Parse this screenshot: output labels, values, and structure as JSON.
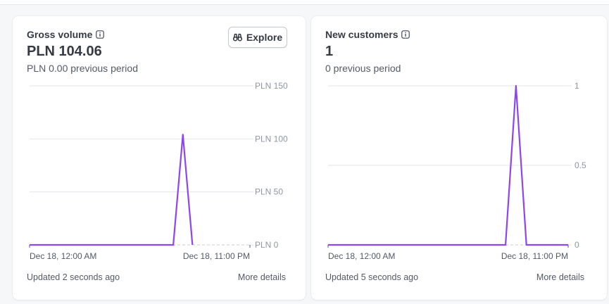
{
  "colors": {
    "line": "#8b46f2",
    "grid": "#e3e6eb",
    "baseline": "#c9ccd4"
  },
  "cards": [
    {
      "title": "Gross volume",
      "value": "PLN 104.06",
      "previous": "PLN 0.00 previous period",
      "explore_label": "Explore",
      "updated": "Updated 2 seconds ago",
      "details": "More details",
      "info_icon": "info-icon",
      "explore_icon": "binoculars-icon"
    },
    {
      "title": "New customers",
      "value": "1",
      "previous": "0 previous period",
      "updated": "Updated 5 seconds ago",
      "details": "More details",
      "info_icon": "info-icon"
    }
  ],
  "chart_data": [
    {
      "type": "line",
      "title": "Gross volume",
      "x_labels": [
        "Dec 18, 12:00 AM",
        "Dec 18, 11:00 PM"
      ],
      "y_ticks": [
        "PLN 0",
        "PLN 50",
        "PLN 100",
        "PLN 150"
      ],
      "y_tick_values": [
        0,
        50,
        100,
        150
      ],
      "ylim": [
        0,
        150
      ],
      "x": [
        0,
        1,
        2,
        3,
        4,
        5,
        6,
        7,
        8,
        9,
        10,
        11,
        12,
        13,
        14,
        15,
        16,
        17,
        18,
        19,
        20,
        21,
        22,
        23
      ],
      "series": [
        {
          "values": [
            0,
            0,
            0,
            0,
            0,
            0,
            0,
            0,
            0,
            0,
            0,
            0,
            0,
            0,
            0,
            0,
            104.06,
            0,
            null,
            null,
            null,
            null,
            null,
            null
          ]
        }
      ],
      "grid": true
    },
    {
      "type": "line",
      "title": "New customers",
      "x_labels": [
        "Dec 18, 12:00 AM",
        "Dec 18, 11:00 PM"
      ],
      "y_ticks": [
        "0",
        "0.5",
        "1"
      ],
      "y_tick_values": [
        0,
        0.5,
        1
      ],
      "ylim": [
        0,
        1
      ],
      "x": [
        0,
        1,
        2,
        3,
        4,
        5,
        6,
        7,
        8,
        9,
        10,
        11,
        12,
        13,
        14,
        15,
        16,
        17,
        18,
        19,
        20,
        21,
        22,
        23
      ],
      "series": [
        {
          "values": [
            0,
            0,
            0,
            0,
            0,
            0,
            0,
            0,
            0,
            0,
            0,
            0,
            0,
            0,
            0,
            0,
            0,
            0,
            1,
            0,
            0,
            0,
            0,
            0
          ]
        }
      ],
      "grid": true
    }
  ]
}
